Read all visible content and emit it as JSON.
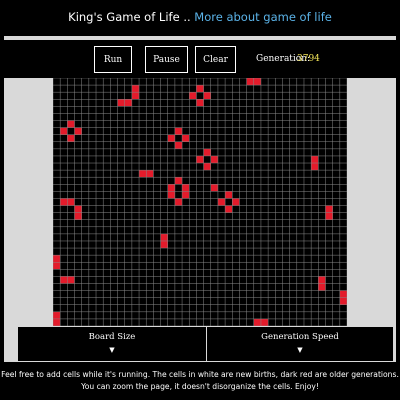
{
  "header": {
    "title": "King's Game of Life",
    "separator": "..",
    "more_link": "More about game of life"
  },
  "controls": {
    "run_label": "Run",
    "pause_label": "Pause",
    "clear_label": "Clear",
    "generation_label": "Generation:",
    "generation_value": "3794"
  },
  "board": {
    "columns": 41,
    "rows": 35,
    "colors": {
      "background": "#000000",
      "grid": "#8a8a8a",
      "old_cell": "#e31b2b",
      "new_cell": "#ffffff"
    },
    "live_cells": [
      [
        27,
        0
      ],
      [
        28,
        0
      ],
      [
        11,
        1
      ],
      [
        20,
        1
      ],
      [
        11,
        2
      ],
      [
        19,
        2
      ],
      [
        21,
        2
      ],
      [
        9,
        3
      ],
      [
        10,
        3
      ],
      [
        20,
        3
      ],
      [
        2,
        6
      ],
      [
        1,
        7
      ],
      [
        3,
        7
      ],
      [
        17,
        7
      ],
      [
        16,
        8
      ],
      [
        18,
        8
      ],
      [
        2,
        8
      ],
      [
        17,
        9
      ],
      [
        21,
        10
      ],
      [
        20,
        11
      ],
      [
        22,
        11
      ],
      [
        36,
        11
      ],
      [
        36,
        12
      ],
      [
        12,
        13
      ],
      [
        13,
        13
      ],
      [
        21,
        12
      ],
      [
        17,
        14
      ],
      [
        16,
        15
      ],
      [
        18,
        15
      ],
      [
        22,
        15
      ],
      [
        16,
        16
      ],
      [
        18,
        16
      ],
      [
        24,
        16
      ],
      [
        23,
        17
      ],
      [
        25,
        17
      ],
      [
        17,
        17
      ],
      [
        24,
        18
      ],
      [
        1,
        17
      ],
      [
        2,
        17
      ],
      [
        3,
        18
      ],
      [
        3,
        19
      ],
      [
        38,
        18
      ],
      [
        38,
        19
      ],
      [
        15,
        22
      ],
      [
        15,
        23
      ],
      [
        0,
        25
      ],
      [
        0,
        26
      ],
      [
        1,
        28
      ],
      [
        2,
        28
      ],
      [
        37,
        28
      ],
      [
        37,
        29
      ],
      [
        40,
        30
      ],
      [
        40,
        31
      ],
      [
        28,
        34
      ],
      [
        29,
        34
      ],
      [
        0,
        33
      ],
      [
        0,
        34
      ]
    ]
  },
  "tabs": {
    "board_size_label": "Board Size",
    "speed_label": "Generation Speed",
    "arrow": "▼"
  },
  "footer": {
    "line1": "Feel free to add cells while it's running. The cells in white are new births, dark red are older generations.",
    "line2": "You can zoom the page, it doesn't disorganize the cells. Enjoy!"
  }
}
